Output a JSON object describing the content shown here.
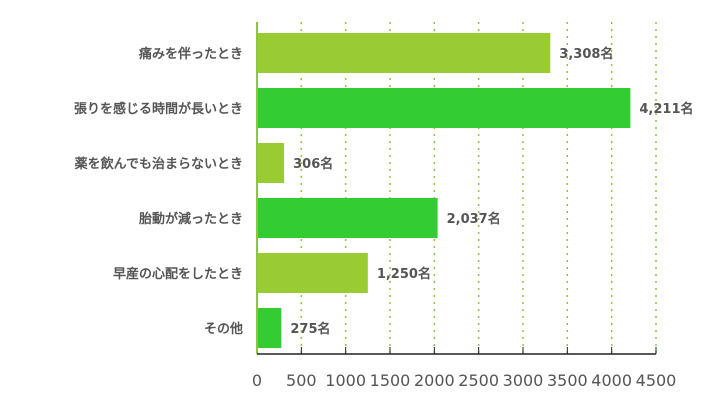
{
  "chart_data": {
    "type": "bar",
    "orientation": "horizontal",
    "categories": [
      "痛みを伴ったとき",
      "張りを感じる時間が長いとき",
      "薬を飲んでも治まらないとき",
      "胎動が減ったとき",
      "早産の心配をしたとき",
      "その他"
    ],
    "values": [
      3308,
      4211,
      306,
      2037,
      1250,
      275
    ],
    "value_labels": [
      "3,308名",
      "4,211名",
      "306名",
      "2,037名",
      "1,250名",
      "275名"
    ],
    "xlim": [
      0,
      4500
    ],
    "xticks": [
      "0",
      "500",
      "1000",
      "1500",
      "2000",
      "2500",
      "3000",
      "3500",
      "4000",
      "4500"
    ],
    "grid": true,
    "colors": [
      "#99cc33",
      "#33cc33"
    ],
    "title": "",
    "xlabel": "",
    "ylabel": ""
  }
}
